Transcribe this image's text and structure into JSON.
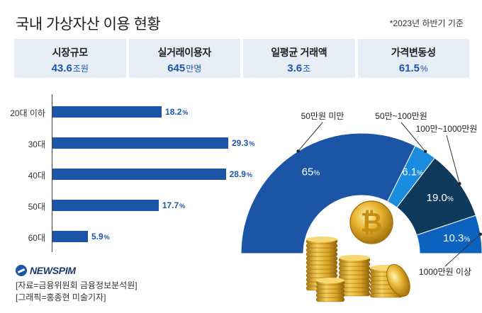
{
  "title": "국내 가상자산 이용 현황",
  "basis": "*2023년 하반기 기준",
  "stats": [
    {
      "label": "시장규모",
      "value": "43.6",
      "unit": "조원"
    },
    {
      "label": "실거래이용자",
      "value": "645",
      "unit": "만명"
    },
    {
      "label": "일평균 거래액",
      "value": "3.6",
      "unit": "조"
    },
    {
      "label": "가격변동성",
      "value": "61.5",
      "unit": "%"
    }
  ],
  "colors": {
    "primary": "#1d55a6",
    "light": "#1a8ce0",
    "dark": "#103a5c",
    "mid": "#0b62bf",
    "panel": "#e6edf5"
  },
  "chart_data": [
    {
      "type": "bar",
      "orientation": "horizontal",
      "title": "",
      "categories": [
        "20대 이하",
        "30대",
        "40대",
        "50대",
        "60대"
      ],
      "values": [
        18.2,
        29.3,
        28.9,
        17.7,
        5.9
      ],
      "value_labels": [
        "18.2",
        "29.3",
        "28.9",
        "17.7",
        "5.9"
      ],
      "unit": "%",
      "xlim": [
        0,
        29.3
      ]
    },
    {
      "type": "pie",
      "style": "semi-donut",
      "slices": [
        {
          "label": "50만원 미만",
          "value": 65,
          "value_label": "65",
          "color": "#1d55a6"
        },
        {
          "label": "50만~100만원",
          "value": 6.1,
          "value_label": "6.1",
          "color": "#1a8ce0"
        },
        {
          "label": "100만~1000만원",
          "value": 19.0,
          "value_label": "19.0",
          "color": "#103a5c"
        },
        {
          "label": "1000만원 이상",
          "value": 10.3,
          "value_label": "10.3",
          "color": "#0b62bf"
        }
      ],
      "unit": "%"
    }
  ],
  "footer": {
    "logo": "NEWSPIM",
    "source": "[자료=금융위원회 금융정보분석원]",
    "credit": "[그래픽=홍종현 미술기자]"
  }
}
